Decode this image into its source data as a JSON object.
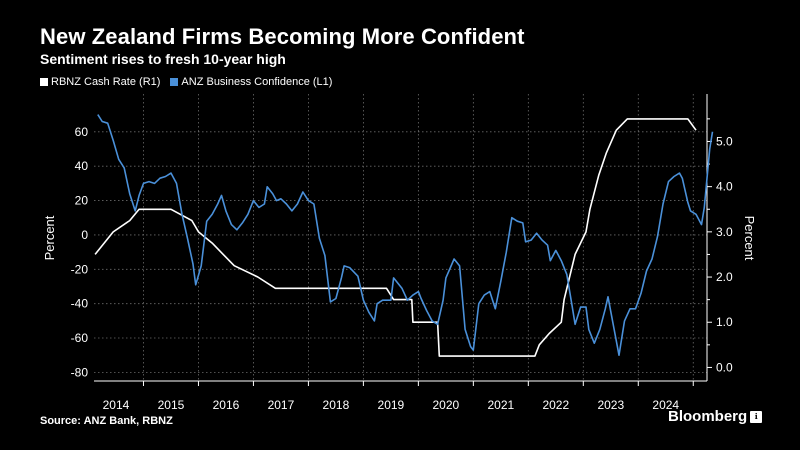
{
  "header": {
    "title": "New Zealand Firms Becoming More Confident",
    "subtitle": "Sentiment rises to fresh 10-year high"
  },
  "footer": {
    "source": "Source: ANZ Bank, RBNZ",
    "brand": "Bloomberg",
    "brand_badge": "ℹ"
  },
  "colors": {
    "background": "#000000",
    "cash_rate": "#ffffff",
    "confidence": "#4a90d9",
    "grid": "#6a6a6a"
  },
  "chart_data": {
    "type": "line",
    "title": "New Zealand Firms Becoming More Confident",
    "subtitle": "Sentiment rises to fresh 10-year high",
    "x_tick_labels": [
      "2014",
      "2015",
      "2016",
      "2017",
      "2018",
      "2019",
      "2020",
      "2021",
      "2022",
      "2023",
      "2024"
    ],
    "xlim": [
      2013.6,
      2024.75
    ],
    "y_left": {
      "label": "Percent",
      "ylim": [
        -85,
        82
      ],
      "ticks": [
        "60",
        "40",
        "20",
        "0",
        "-20",
        "-40",
        "-60",
        "-80"
      ]
    },
    "y_right": {
      "label": "Percent",
      "ylim": [
        -0.3,
        6.05
      ],
      "ticks": [
        "5.0",
        "4.0",
        "3.0",
        "2.0",
        "1.0",
        "0.0"
      ]
    },
    "series": [
      {
        "name": "RBNZ Cash Rate (R1)",
        "axis": "right",
        "points": [
          [
            2013.62,
            2.5
          ],
          [
            2013.95,
            3.0
          ],
          [
            2014.25,
            3.25
          ],
          [
            2014.42,
            3.5
          ],
          [
            2014.6,
            3.5
          ],
          [
            2015.0,
            3.5
          ],
          [
            2015.38,
            3.25
          ],
          [
            2015.5,
            3.0
          ],
          [
            2015.75,
            2.75
          ],
          [
            2015.95,
            2.5
          ],
          [
            2016.15,
            2.25
          ],
          [
            2016.58,
            2.0
          ],
          [
            2016.9,
            1.75
          ],
          [
            2017.5,
            1.75
          ],
          [
            2018.0,
            1.75
          ],
          [
            2018.5,
            1.75
          ],
          [
            2018.92,
            1.75
          ],
          [
            2019.05,
            1.5
          ],
          [
            2019.38,
            1.5
          ],
          [
            2019.4,
            1.0
          ],
          [
            2019.85,
            1.0
          ],
          [
            2019.88,
            0.25
          ],
          [
            2020.5,
            0.25
          ],
          [
            2021.0,
            0.25
          ],
          [
            2021.12,
            0.25
          ],
          [
            2021.62,
            0.25
          ],
          [
            2021.7,
            0.5
          ],
          [
            2021.88,
            0.75
          ],
          [
            2022.1,
            1.0
          ],
          [
            2022.15,
            1.5
          ],
          [
            2022.25,
            2.0
          ],
          [
            2022.35,
            2.5
          ],
          [
            2022.55,
            3.0
          ],
          [
            2022.62,
            3.5
          ],
          [
            2022.78,
            4.25
          ],
          [
            2022.92,
            4.75
          ],
          [
            2023.1,
            5.25
          ],
          [
            2023.3,
            5.5
          ],
          [
            2023.75,
            5.5
          ],
          [
            2024.0,
            5.5
          ],
          [
            2024.4,
            5.5
          ],
          [
            2024.55,
            5.25
          ]
        ]
      },
      {
        "name": "ANZ Business Confidence (L1)",
        "axis": "left",
        "points": [
          [
            2013.67,
            70
          ],
          [
            2013.75,
            66
          ],
          [
            2013.85,
            65
          ],
          [
            2013.95,
            55
          ],
          [
            2014.05,
            44
          ],
          [
            2014.15,
            39
          ],
          [
            2014.25,
            24
          ],
          [
            2014.35,
            14
          ],
          [
            2014.42,
            23
          ],
          [
            2014.5,
            30
          ],
          [
            2014.6,
            31
          ],
          [
            2014.7,
            30
          ],
          [
            2014.8,
            33
          ],
          [
            2014.9,
            34
          ],
          [
            2015.0,
            36
          ],
          [
            2015.1,
            30
          ],
          [
            2015.2,
            12
          ],
          [
            2015.3,
            -2
          ],
          [
            2015.4,
            -17
          ],
          [
            2015.45,
            -29
          ],
          [
            2015.55,
            -18
          ],
          [
            2015.65,
            8
          ],
          [
            2015.75,
            12
          ],
          [
            2015.85,
            18
          ],
          [
            2015.92,
            23
          ],
          [
            2016.0,
            14
          ],
          [
            2016.1,
            6
          ],
          [
            2016.2,
            3
          ],
          [
            2016.3,
            7
          ],
          [
            2016.4,
            12
          ],
          [
            2016.5,
            20
          ],
          [
            2016.6,
            16
          ],
          [
            2016.7,
            18
          ],
          [
            2016.75,
            28
          ],
          [
            2016.85,
            24
          ],
          [
            2016.92,
            20
          ],
          [
            2017.0,
            21
          ],
          [
            2017.1,
            18
          ],
          [
            2017.2,
            14
          ],
          [
            2017.3,
            18
          ],
          [
            2017.4,
            25
          ],
          [
            2017.5,
            20
          ],
          [
            2017.6,
            18
          ],
          [
            2017.7,
            -2
          ],
          [
            2017.8,
            -12
          ],
          [
            2017.9,
            -39
          ],
          [
            2018.0,
            -37
          ],
          [
            2018.1,
            -25
          ],
          [
            2018.15,
            -18
          ],
          [
            2018.25,
            -19
          ],
          [
            2018.4,
            -24
          ],
          [
            2018.5,
            -38
          ],
          [
            2018.6,
            -45
          ],
          [
            2018.7,
            -50
          ],
          [
            2018.75,
            -40
          ],
          [
            2018.85,
            -38
          ],
          [
            2019.0,
            -38
          ],
          [
            2019.05,
            -25
          ],
          [
            2019.2,
            -31
          ],
          [
            2019.3,
            -38
          ],
          [
            2019.4,
            -35
          ],
          [
            2019.5,
            -33
          ],
          [
            2019.55,
            -37
          ],
          [
            2019.65,
            -44
          ],
          [
            2019.75,
            -50
          ],
          [
            2019.85,
            -52
          ],
          [
            2019.95,
            -38
          ],
          [
            2020.0,
            -25
          ],
          [
            2020.15,
            -14
          ],
          [
            2020.25,
            -18
          ],
          [
            2020.35,
            -55
          ],
          [
            2020.45,
            -65
          ],
          [
            2020.5,
            -67
          ],
          [
            2020.6,
            -40
          ],
          [
            2020.7,
            -35
          ],
          [
            2020.8,
            -33
          ],
          [
            2020.9,
            -43
          ],
          [
            2021.0,
            -27
          ],
          [
            2021.1,
            -10
          ],
          [
            2021.2,
            10
          ],
          [
            2021.3,
            8
          ],
          [
            2021.4,
            7
          ],
          [
            2021.45,
            -4
          ],
          [
            2021.55,
            -3
          ],
          [
            2021.65,
            1
          ],
          [
            2021.75,
            -3
          ],
          [
            2021.85,
            -6
          ],
          [
            2021.9,
            -15
          ],
          [
            2022.0,
            -9
          ],
          [
            2022.1,
            -15
          ],
          [
            2022.2,
            -23
          ],
          [
            2022.3,
            -42
          ],
          [
            2022.35,
            -52
          ],
          [
            2022.45,
            -42
          ],
          [
            2022.55,
            -42
          ],
          [
            2022.6,
            -55
          ],
          [
            2022.7,
            -63
          ],
          [
            2022.8,
            -55
          ],
          [
            2022.9,
            -43
          ],
          [
            2022.95,
            -36
          ],
          [
            2023.05,
            -53
          ],
          [
            2023.15,
            -70
          ],
          [
            2023.25,
            -50
          ],
          [
            2023.35,
            -43
          ],
          [
            2023.45,
            -43
          ],
          [
            2023.55,
            -34
          ],
          [
            2023.65,
            -21
          ],
          [
            2023.75,
            -14
          ],
          [
            2023.85,
            -1
          ],
          [
            2023.95,
            18
          ],
          [
            2024.05,
            31
          ],
          [
            2024.15,
            34
          ],
          [
            2024.25,
            36
          ],
          [
            2024.3,
            33
          ],
          [
            2024.4,
            19
          ],
          [
            2024.45,
            14
          ],
          [
            2024.55,
            12
          ],
          [
            2024.65,
            6
          ],
          [
            2024.7,
            16
          ],
          [
            2024.8,
            50
          ],
          [
            2024.85,
            60
          ]
        ]
      }
    ]
  }
}
